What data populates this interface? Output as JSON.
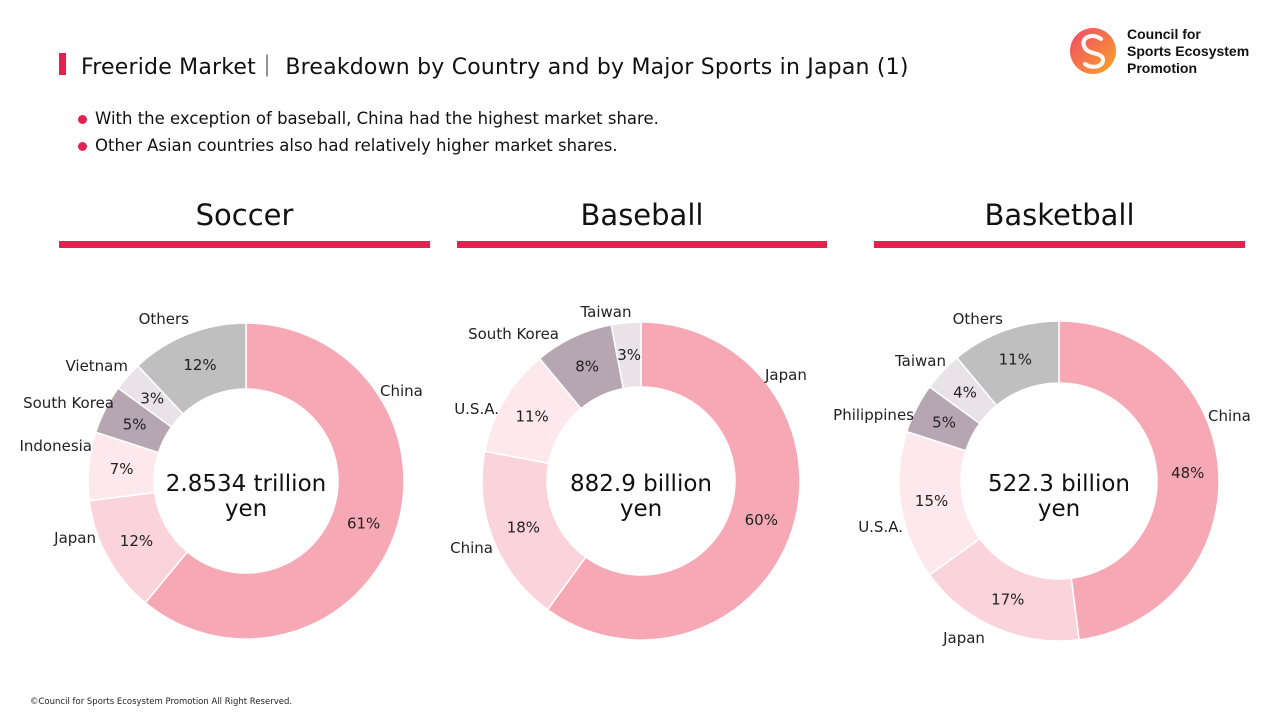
{
  "header": {
    "title": "Freeride Market｜ Breakdown by Country and by Major Sports in Japan (1)"
  },
  "logo": {
    "lines": [
      "Council for",
      "Sports Ecosystem",
      "Promotion"
    ]
  },
  "bullets": [
    "With the exception of baseball, China had the highest market share.",
    "Other Asian countries also had relatively higher market shares."
  ],
  "footer": "©Council for Sports Ecosystem Promotion All Right Reserved.",
  "colors": {
    "accent": "#e0244f"
  },
  "chart_data": [
    {
      "type": "pie",
      "title": "Soccer",
      "total_lines": [
        "2.8534 trillion",
        "yen"
      ],
      "slices": [
        {
          "label": "China",
          "value": 61,
          "value_label": "61%",
          "color": "#f7a8b5"
        },
        {
          "label": "Japan",
          "value": 12,
          "value_label": "12%",
          "color": "#fbd3da"
        },
        {
          "label": "Indonesia",
          "value": 7,
          "value_label": "7%",
          "color": "#fde9ed"
        },
        {
          "label": "South Korea",
          "value": 5,
          "value_label": "5%",
          "color": "#b5a6b2"
        },
        {
          "label": "Vietnam",
          "value": 3,
          "value_label": "3%",
          "color": "#e9e3e7"
        },
        {
          "label": "Others",
          "value": 12,
          "value_label": "12%",
          "color": "#bfbfbf"
        }
      ]
    },
    {
      "type": "pie",
      "title": "Baseball",
      "total_lines": [
        "882.9 billion",
        "yen"
      ],
      "slices": [
        {
          "label": "Japan",
          "value": 60,
          "value_label": "60%",
          "color": "#f7a8b5"
        },
        {
          "label": "China",
          "value": 18,
          "value_label": "18%",
          "color": "#fbd3da"
        },
        {
          "label": "U.S.A.",
          "value": 11,
          "value_label": "11%",
          "color": "#fde9ed"
        },
        {
          "label": "South Korea",
          "value": 8,
          "value_label": "8%",
          "color": "#b5a6b2"
        },
        {
          "label": "Taiwan",
          "value": 3,
          "value_label": "3%",
          "color": "#e9e3e7"
        }
      ]
    },
    {
      "type": "pie",
      "title": "Basketball",
      "total_lines": [
        "522.3 billion",
        "yen"
      ],
      "slices": [
        {
          "label": "China",
          "value": 48,
          "value_label": "48%",
          "color": "#f7a8b5"
        },
        {
          "label": "Japan",
          "value": 17,
          "value_label": "17%",
          "color": "#fbd3da"
        },
        {
          "label": "U.S.A.",
          "value": 15,
          "value_label": "15%",
          "color": "#fde9ed"
        },
        {
          "label": "Philippines",
          "value": 5,
          "value_label": "5%",
          "color": "#b5a6b2"
        },
        {
          "label": "Taiwan",
          "value": 4,
          "value_label": "4%",
          "color": "#e9e3e7"
        },
        {
          "label": "Others",
          "value": 11,
          "value_label": "11%",
          "color": "#bfbfbf"
        }
      ]
    }
  ]
}
